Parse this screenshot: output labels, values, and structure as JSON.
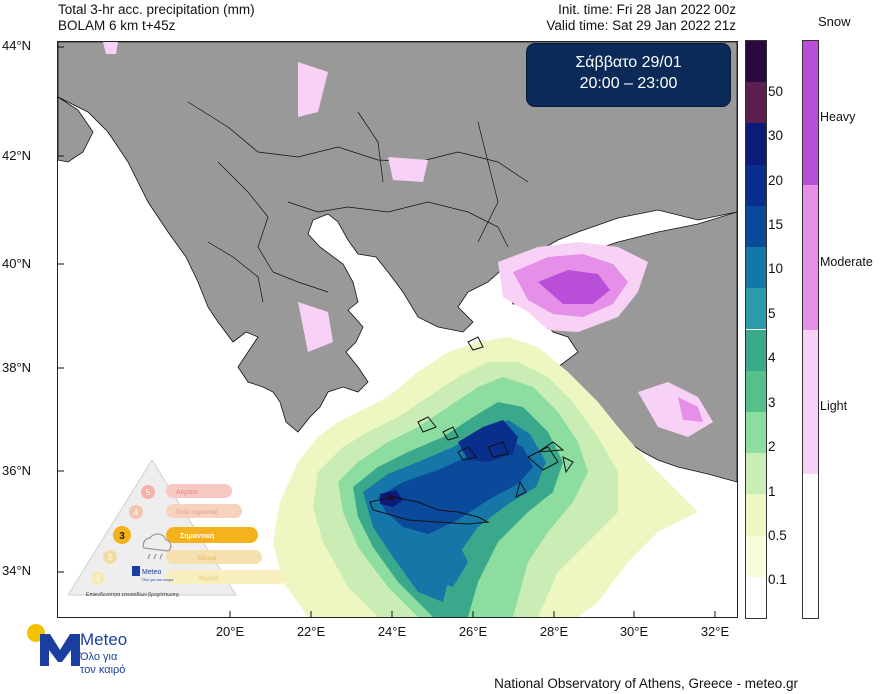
{
  "header": {
    "title": "Total 3-hr acc. precipitation (mm)",
    "model": "BOLAM 6 km t+45z",
    "init_time": "Init. time: Fri 28 Jan 2022 00z",
    "valid_time": "Valid time: Sat 29 Jan 2022 21z"
  },
  "day_box": {
    "day": "Σάββατο 29/01",
    "hours": "20:00 – 23:00"
  },
  "lat_labels": [
    "44°N",
    "42°N",
    "40°N",
    "38°N",
    "36°N",
    "34°N"
  ],
  "lon_labels": [
    "20°E",
    "22°E",
    "24°E",
    "26°E",
    "28°E",
    "30°E",
    "32°E"
  ],
  "precip_scale": {
    "labels": [
      "50",
      "30",
      "20",
      "15",
      "10",
      "5",
      "4",
      "3",
      "2",
      "1",
      "0.5",
      "0.1"
    ],
    "colors": [
      "#2a0a3e",
      "#5b1f4e",
      "#0c1a7a",
      "#0a2e8c",
      "#0b4a9a",
      "#1577a8",
      "#2c9aa8",
      "#3aa88a",
      "#55c08a",
      "#8ddca0",
      "#c9edb4",
      "#eef6c2",
      "#f8fbdc",
      "#ffffff"
    ]
  },
  "snow_scale": {
    "title": "Snow",
    "labels": [
      "Heavy",
      "Moderate",
      "Light"
    ],
    "colors": [
      "#b94fd8",
      "#e58fe8",
      "#f8d2f6",
      "#ffffff"
    ]
  },
  "footer": "National Observatory of Athens, Greece - meteo.gr",
  "logo": {
    "name": "Meteo",
    "tagline_line1": "Όλο για",
    "tagline_line2": "τον καιρό"
  },
  "inset_legend": {
    "levels": [
      "Ακραία",
      "Πολύ σημαντική",
      "Σημαντική",
      "Μέτρια",
      "Χαμηλή"
    ],
    "numbers": [
      "5",
      "4",
      "3",
      "2",
      "1"
    ],
    "caption": "Επικινδυνότητα επεισοδίων βροχόπτωσης",
    "brand": "Meteo",
    "brand_tag": "Όλο για τον καιρό"
  }
}
